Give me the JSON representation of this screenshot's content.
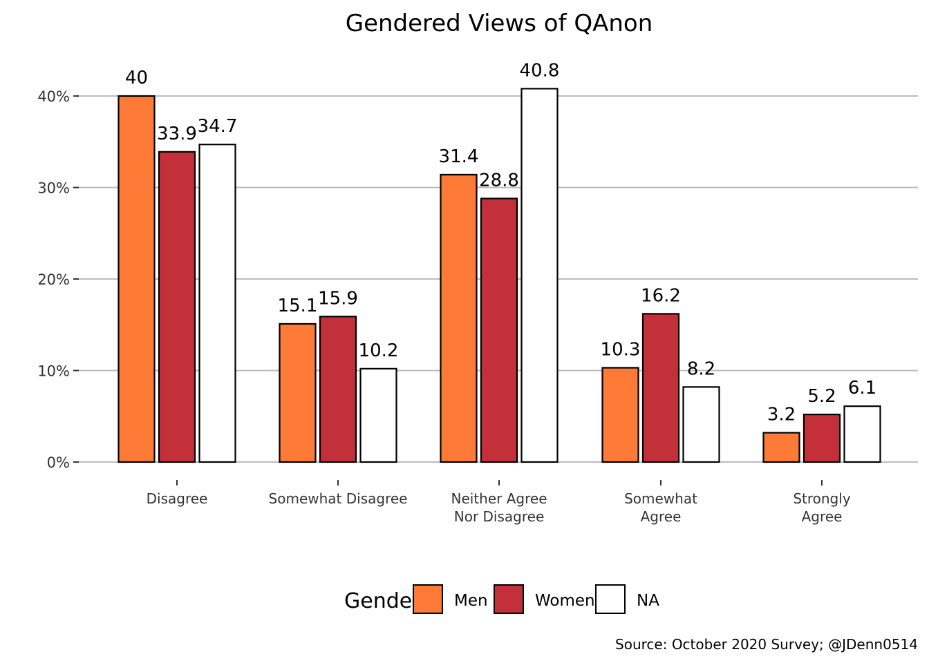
{
  "chart_data": {
    "type": "bar",
    "title": "Gendered Views of QAnon",
    "xlabel": "",
    "ylabel": "",
    "categories": [
      [
        "Disagree"
      ],
      [
        "Somewhat Disagree"
      ],
      [
        "Neither Agree",
        "Nor Disagree"
      ],
      [
        "Somewhat",
        "Agree"
      ],
      [
        "Strongly",
        "Agree"
      ]
    ],
    "series": [
      {
        "name": "Men",
        "color": "#fd7a37",
        "values": [
          40,
          15.1,
          31.4,
          10.3,
          3.2
        ],
        "labels": [
          "40",
          "15.1",
          "31.4",
          "10.3",
          "3.2"
        ]
      },
      {
        "name": "Women",
        "color": "#c4303a",
        "values": [
          33.9,
          15.9,
          28.8,
          16.2,
          5.2
        ],
        "labels": [
          "33.9",
          "15.9",
          "28.8",
          "16.2",
          "5.2"
        ]
      },
      {
        "name": "NA",
        "color": "#ffffff",
        "values": [
          34.7,
          10.2,
          40.8,
          8.2,
          6.1
        ],
        "labels": [
          "34.7",
          "10.2",
          "40.8",
          "8.2",
          "6.1"
        ]
      }
    ],
    "yticks": [
      0,
      10,
      20,
      30,
      40
    ],
    "ytick_labels": [
      "0%",
      "10%",
      "20%",
      "30%",
      "40%"
    ],
    "ylim": [
      0,
      43
    ],
    "grid": "horizontal",
    "legend": {
      "title": "Gender",
      "placement": "bottom"
    },
    "caption": "Source: October 2020 Survey; @JDenn0514"
  }
}
